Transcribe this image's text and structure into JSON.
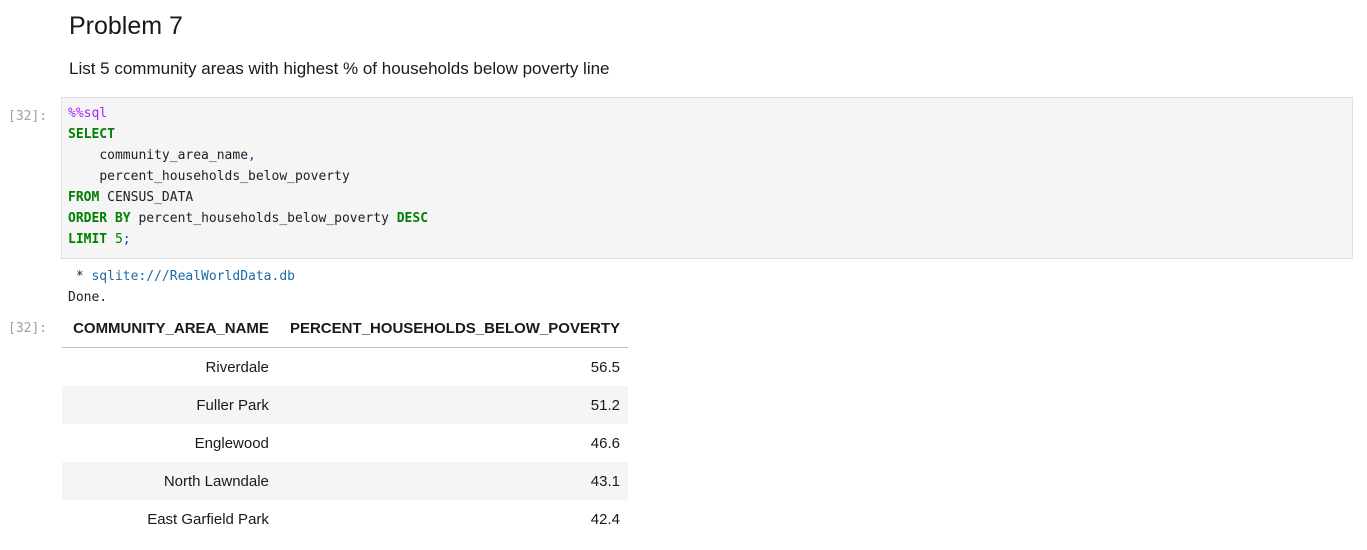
{
  "markdown": {
    "title": "Problem 7",
    "text": "List 5 community areas with highest % of households below poverty line"
  },
  "code_cell": {
    "prompt": "[32]:",
    "magic": "%%sql",
    "kw_select": "SELECT",
    "col1": "community_area_name",
    "comma": ",",
    "col2": "percent_households_below_poverty",
    "kw_from": "FROM",
    "table_name": "CENSUS_DATA",
    "kw_order_by": "ORDER BY",
    "order_col": "percent_households_below_poverty",
    "kw_desc": "DESC",
    "kw_limit": "LIMIT",
    "limit_value": "5",
    "semicolon": ";"
  },
  "output": {
    "prompt": "[32]:",
    "connection_prefix": " * ",
    "connection": "sqlite:///RealWorldData.db",
    "status": "Done.",
    "table": {
      "headers": [
        "COMMUNITY_AREA_NAME",
        "PERCENT_HOUSEHOLDS_BELOW_POVERTY"
      ],
      "rows": [
        [
          "Riverdale",
          "56.5"
        ],
        [
          "Fuller Park",
          "51.2"
        ],
        [
          "Englewood",
          "46.6"
        ],
        [
          "North Lawndale",
          "43.1"
        ],
        [
          "East Garfield Park",
          "42.4"
        ]
      ]
    }
  }
}
